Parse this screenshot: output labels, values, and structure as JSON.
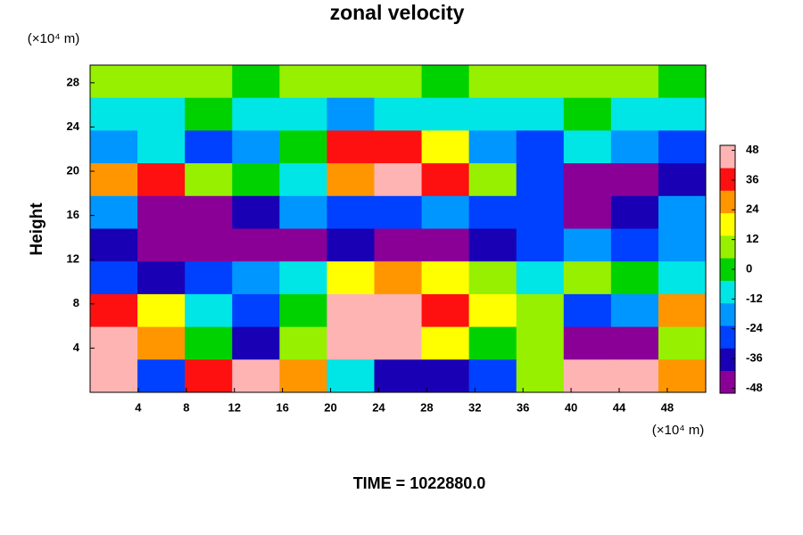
{
  "chart_data": {
    "type": "heatmap",
    "title": "zonal velocity",
    "ylabel": "Height",
    "xunit": "(×10⁴ m)",
    "yunit": "(×10⁴ m)",
    "footer": "TIME = 1022880.0",
    "xlim": [
      0,
      51.2
    ],
    "ylim": [
      0,
      29.6
    ],
    "xticks": [
      4,
      8,
      12,
      16,
      20,
      24,
      28,
      32,
      36,
      40,
      44,
      48
    ],
    "yticks": [
      4,
      8,
      12,
      16,
      20,
      24,
      28
    ],
    "clim": [
      -50,
      50
    ],
    "cticks": [
      48,
      36,
      24,
      12,
      0,
      -12,
      -24,
      -36,
      -48
    ],
    "colors": [
      "#8a0096",
      "#1a00b4",
      "#0040ff",
      "#0096ff",
      "#00e6e6",
      "#00d200",
      "#96f000",
      "#ffff00",
      "#ff9600",
      "#ff1010",
      "#ffb4b4"
    ],
    "z": [
      [
        5,
        8,
        5,
        3,
        5,
        8,
        5,
        3,
        5,
        5,
        8,
        5,
        3
      ],
      [
        -10,
        -5,
        0,
        -10,
        -5,
        -15,
        -10,
        -5,
        -10,
        -5,
        0,
        -5,
        -10
      ],
      [
        -20,
        -10,
        -25,
        -20,
        0,
        40,
        35,
        20,
        -20,
        -30,
        -10,
        -20,
        -30
      ],
      [
        30,
        40,
        10,
        0,
        -10,
        30,
        48,
        40,
        10,
        -30,
        -48,
        -48,
        -40
      ],
      [
        -20,
        -48,
        -48,
        -35,
        -20,
        -30,
        -30,
        -20,
        -30,
        -30,
        -48,
        -40,
        -20
      ],
      [
        -40,
        -48,
        -48,
        -48,
        -48,
        -40,
        -48,
        -48,
        -40,
        -30,
        -20,
        -30,
        -20
      ],
      [
        -30,
        -40,
        -30,
        -20,
        -10,
        20,
        30,
        20,
        10,
        -10,
        10,
        0,
        -10
      ],
      [
        40,
        20,
        -10,
        -30,
        0,
        48,
        48,
        40,
        20,
        10,
        -30,
        -20,
        30
      ],
      [
        48,
        30,
        0,
        -40,
        10,
        48,
        48,
        20,
        0,
        10,
        -48,
        -48,
        10
      ],
      [
        48,
        -30,
        40,
        48,
        30,
        -10,
        -40,
        -40,
        -30,
        10,
        48,
        48,
        30
      ]
    ]
  }
}
